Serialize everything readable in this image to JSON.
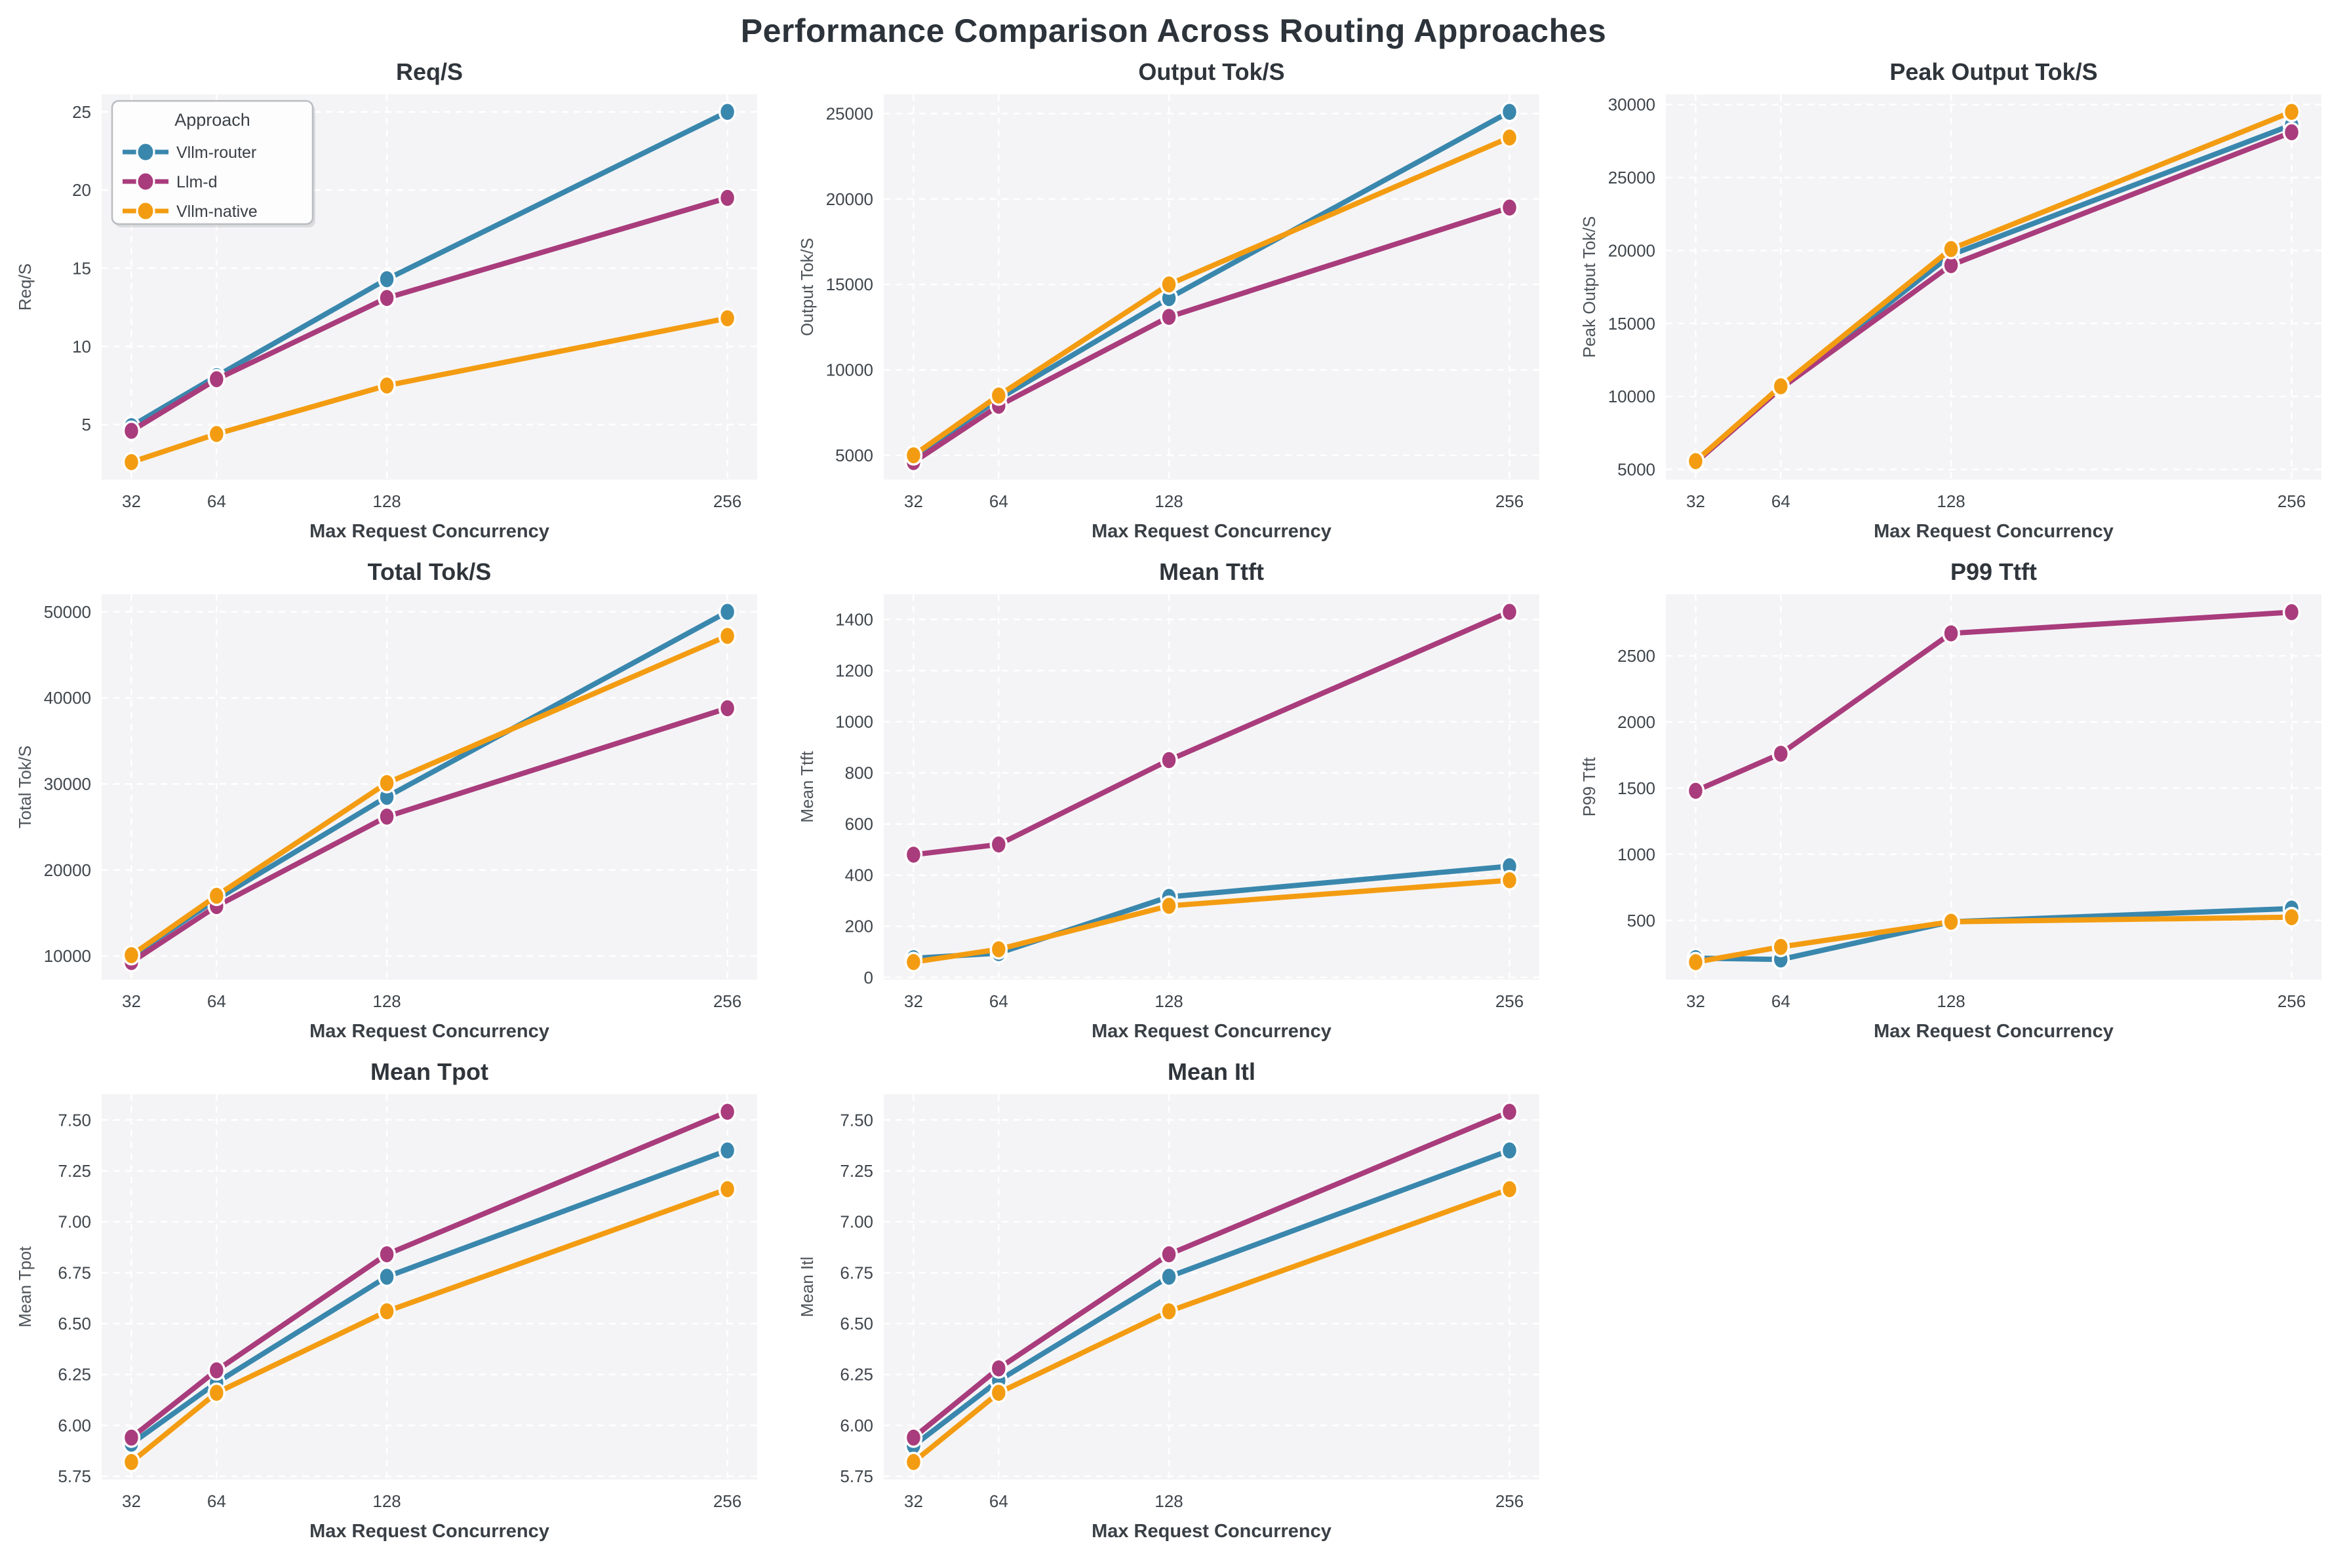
{
  "figure": {
    "title": "Performance Comparison Across Routing Approaches",
    "background": "#ffffff",
    "plot_background": "#f4f4f6",
    "grid_color": "#ffffff",
    "grid_dashed": true,
    "title_color": "#2c333a",
    "subplot_title_color": "#2f353b",
    "tick_color": "#3f464c",
    "ylabel_color": "#4d545a",
    "xlabel_color": "#3a4046"
  },
  "legend": {
    "title": "Approach",
    "position": "upper-left-first-subplot",
    "background": "#fdfdfe",
    "border_color": "#b9bcc0"
  },
  "series_meta": [
    {
      "name": "Vllm-router",
      "color": "#3A87AD"
    },
    {
      "name": "Llm-d",
      "color": "#A93C7C"
    },
    {
      "name": "Vllm-native",
      "color": "#F39C12"
    }
  ],
  "x_axis": {
    "label": "Max Request Concurrency",
    "ticks": [
      32,
      64,
      128,
      256
    ],
    "tick_labels": [
      "32",
      "64",
      "128",
      "256"
    ],
    "lim": [
      20.8,
      267.2
    ],
    "scale": "linear"
  },
  "chart_data": [
    {
      "type": "line",
      "title": "Req/S",
      "ylabel": "Req/S",
      "legend": true,
      "x": [
        32,
        64,
        128,
        256
      ],
      "ylim": [
        1.48,
        26.12
      ],
      "yticks": [
        5,
        10,
        15,
        20,
        25
      ],
      "ytick_labels": [
        "5",
        "10",
        "15",
        "20",
        "25"
      ],
      "series": [
        {
          "name": "Vllm-router",
          "values": [
            4.9,
            8.1,
            14.3,
            25.0
          ]
        },
        {
          "name": "Llm-d",
          "values": [
            4.6,
            7.9,
            13.1,
            19.5
          ]
        },
        {
          "name": "Vllm-native",
          "values": [
            2.6,
            4.4,
            7.5,
            11.8
          ]
        }
      ]
    },
    {
      "type": "line",
      "title": "Output Tok/S",
      "ylabel": "Output Tok/S",
      "legend": false,
      "x": [
        32,
        64,
        128,
        256
      ],
      "ylim": [
        3575,
        26125
      ],
      "yticks": [
        5000,
        10000,
        15000,
        20000,
        25000
      ],
      "ytick_labels": [
        "5000",
        "10000",
        "15000",
        "20000",
        "25000"
      ],
      "series": [
        {
          "name": "Vllm-router",
          "values": [
            4900,
            8300,
            14200,
            25100
          ]
        },
        {
          "name": "Llm-d",
          "values": [
            4600,
            7900,
            13100,
            19500
          ]
        },
        {
          "name": "Vllm-native",
          "values": [
            5000,
            8500,
            15000,
            23600
          ]
        }
      ]
    },
    {
      "type": "line",
      "title": "Peak Output Tok/S",
      "ylabel": "Peak Output Tok/S",
      "legend": false,
      "x": [
        32,
        64,
        128,
        256
      ],
      "ylim": [
        4300,
        30700
      ],
      "yticks": [
        5000,
        10000,
        15000,
        20000,
        25000,
        30000
      ],
      "ytick_labels": [
        "5000",
        "10000",
        "15000",
        "20000",
        "25000",
        "30000"
      ],
      "series": [
        {
          "name": "Vllm-router",
          "values": [
            5520,
            10600,
            19700,
            28600
          ]
        },
        {
          "name": "Llm-d",
          "values": [
            5480,
            10550,
            19000,
            28100
          ]
        },
        {
          "name": "Vllm-native",
          "values": [
            5570,
            10700,
            20100,
            29500
          ]
        }
      ]
    },
    {
      "type": "line",
      "title": "Total Tok/S",
      "ylabel": "Total Tok/S",
      "legend": false,
      "x": [
        32,
        64,
        128,
        256
      ],
      "ylim": [
        7265,
        52035
      ],
      "yticks": [
        10000,
        20000,
        30000,
        40000,
        50000
      ],
      "ytick_labels": [
        "10000",
        "20000",
        "30000",
        "40000",
        "50000"
      ],
      "series": [
        {
          "name": "Vllm-router",
          "values": [
            10000,
            16600,
            28500,
            50000
          ]
        },
        {
          "name": "Llm-d",
          "values": [
            9300,
            15800,
            26200,
            38800
          ]
        },
        {
          "name": "Vllm-native",
          "values": [
            10100,
            17000,
            30100,
            47200
          ]
        }
      ]
    },
    {
      "type": "line",
      "title": "Mean Ttft",
      "ylabel": "Mean Ttft",
      "legend": false,
      "x": [
        32,
        64,
        128,
        256
      ],
      "ylim": [
        -8.5,
        1498.5
      ],
      "yticks": [
        0,
        200,
        400,
        600,
        800,
        1000,
        1200,
        1400
      ],
      "ytick_labels": [
        "0",
        "200",
        "400",
        "600",
        "800",
        "1000",
        "1200",
        "1400"
      ],
      "series": [
        {
          "name": "Vllm-router",
          "values": [
            75,
            95,
            315,
            435
          ]
        },
        {
          "name": "Llm-d",
          "values": [
            480,
            520,
            850,
            1430
          ]
        },
        {
          "name": "Vllm-native",
          "values": [
            60,
            110,
            280,
            380
          ]
        }
      ]
    },
    {
      "type": "line",
      "title": "P99 Ttft",
      "ylabel": "P99 Ttft",
      "legend": false,
      "x": [
        32,
        64,
        128,
        256
      ],
      "ylim": [
        53,
        2965
      ],
      "yticks": [
        500,
        1000,
        1500,
        2000,
        2500
      ],
      "ytick_labels": [
        "500",
        "1000",
        "1500",
        "2000",
        "2500"
      ],
      "series": [
        {
          "name": "Vllm-router",
          "values": [
            215,
            205,
            490,
            590
          ]
        },
        {
          "name": "Llm-d",
          "values": [
            1480,
            1760,
            2670,
            2830
          ]
        },
        {
          "name": "Vllm-native",
          "values": [
            185,
            300,
            490,
            525
          ]
        }
      ]
    },
    {
      "type": "line",
      "title": "Mean Tpot",
      "ylabel": "Mean Tpot",
      "legend": false,
      "x": [
        32,
        64,
        128,
        256
      ],
      "ylim": [
        5.734,
        7.626
      ],
      "yticks": [
        5.75,
        6.0,
        6.25,
        6.5,
        6.75,
        7.0,
        7.25,
        7.5
      ],
      "ytick_labels": [
        "5.75",
        "6.00",
        "6.25",
        "6.50",
        "6.75",
        "7.00",
        "7.25",
        "7.50"
      ],
      "series": [
        {
          "name": "Vllm-router",
          "values": [
            5.91,
            6.21,
            6.73,
            7.35
          ]
        },
        {
          "name": "Llm-d",
          "values": [
            5.94,
            6.27,
            6.84,
            7.54
          ]
        },
        {
          "name": "Vllm-native",
          "values": [
            5.82,
            6.16,
            6.56,
            7.16
          ]
        }
      ]
    },
    {
      "type": "line",
      "title": "Mean Itl",
      "ylabel": "Mean Itl",
      "legend": false,
      "x": [
        32,
        64,
        128,
        256
      ],
      "ylim": [
        5.734,
        7.626
      ],
      "yticks": [
        5.75,
        6.0,
        6.25,
        6.5,
        6.75,
        7.0,
        7.25,
        7.5
      ],
      "ytick_labels": [
        "5.75",
        "6.00",
        "6.25",
        "6.50",
        "6.75",
        "7.00",
        "7.25",
        "7.50"
      ],
      "series": [
        {
          "name": "Vllm-router",
          "values": [
            5.9,
            6.22,
            6.73,
            7.35
          ]
        },
        {
          "name": "Llm-d",
          "values": [
            5.94,
            6.28,
            6.84,
            7.54
          ]
        },
        {
          "name": "Vllm-native",
          "values": [
            5.82,
            6.16,
            6.56,
            7.16
          ]
        }
      ]
    }
  ]
}
